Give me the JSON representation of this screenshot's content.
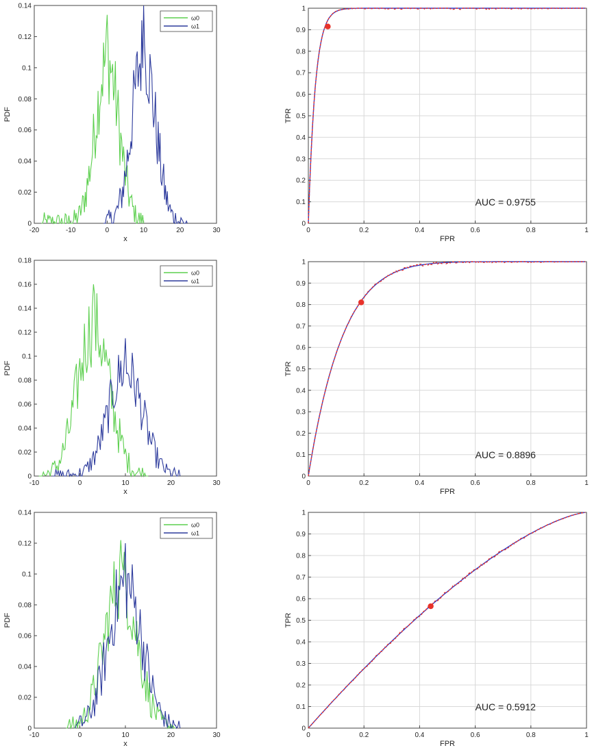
{
  "colors": {
    "omega0": "#5ccf4e",
    "omega1": "#2c3a9c",
    "roc_fit": "#2b3fd0",
    "roc_empirical": "#e8322a",
    "operating_point": "#e8322a",
    "grid": "#d8d8d8",
    "axis": "#444444"
  },
  "chart_data": [
    {
      "type": "line",
      "row": 1,
      "panel": "pdf",
      "xlabel": "x",
      "ylabel": "PDF",
      "xlim": [
        -20,
        30
      ],
      "ylim": [
        0,
        0.14
      ],
      "xticks": [
        "-20",
        "-10",
        "0",
        "10",
        "20",
        "30"
      ],
      "yticks": [
        "0",
        "0.02",
        "0.04",
        "0.06",
        "0.08",
        "0.1",
        "0.12",
        "0.14"
      ],
      "grid": false,
      "legend": "top-right",
      "series": [
        {
          "name": "ω0",
          "mean": 0,
          "sd": 3.2,
          "x_range": [
            -18,
            10
          ],
          "peak": 0.134
        },
        {
          "name": "ω1",
          "mean": 10,
          "sd": 3.2,
          "x_range": [
            -1,
            22
          ],
          "peak": 0.14
        }
      ]
    },
    {
      "type": "line",
      "row": 1,
      "panel": "roc",
      "xlabel": "FPR",
      "ylabel": "TPR",
      "xlim": [
        0,
        1
      ],
      "ylim": [
        0,
        1
      ],
      "xticks": [
        "0",
        "0.2",
        "0.4",
        "0.6",
        "0.8",
        "1"
      ],
      "yticks": [
        "0",
        "0.1",
        "0.2",
        "0.3",
        "0.4",
        "0.5",
        "0.6",
        "0.7",
        "0.8",
        "0.9",
        "1"
      ],
      "grid": true,
      "auc": 0.9755,
      "annotation": "AUC = 0.9755",
      "operating_point": {
        "fpr": 0.07,
        "tpr": 0.915
      }
    },
    {
      "type": "line",
      "row": 2,
      "panel": "pdf",
      "xlabel": "x",
      "ylabel": "PDF",
      "xlim": [
        -10,
        30
      ],
      "ylim": [
        0,
        0.18
      ],
      "xticks": [
        "-10",
        "0",
        "10",
        "20",
        "30"
      ],
      "yticks": [
        "0",
        "0.02",
        "0.04",
        "0.06",
        "0.08",
        "0.1",
        "0.12",
        "0.14",
        "0.16",
        "0.18"
      ],
      "grid": false,
      "legend": "top-right",
      "series": [
        {
          "name": "ω0",
          "mean": 3,
          "sd": 3.5,
          "x_range": [
            -9,
            15
          ],
          "peak": 0.16
        },
        {
          "name": "ω1",
          "mean": 10,
          "sd": 3.7,
          "x_range": [
            -6,
            22
          ],
          "peak": 0.115
        }
      ]
    },
    {
      "type": "line",
      "row": 2,
      "panel": "roc",
      "xlabel": "FPR",
      "ylabel": "TPR",
      "xlim": [
        0,
        1
      ],
      "ylim": [
        0,
        1
      ],
      "xticks": [
        "0",
        "0.2",
        "0.4",
        "0.6",
        "0.8",
        "1"
      ],
      "yticks": [
        "0",
        "0.1",
        "0.2",
        "0.3",
        "0.4",
        "0.5",
        "0.6",
        "0.7",
        "0.8",
        "0.9",
        "1"
      ],
      "grid": true,
      "auc": 0.8896,
      "annotation": "AUC = 0.8896",
      "operating_point": {
        "fpr": 0.19,
        "tpr": 0.81
      }
    },
    {
      "type": "line",
      "row": 3,
      "panel": "pdf",
      "xlabel": "x",
      "ylabel": "PDF",
      "xlim": [
        -10,
        30
      ],
      "ylim": [
        0,
        0.14
      ],
      "xticks": [
        "-10",
        "0",
        "10",
        "20",
        "30"
      ],
      "yticks": [
        "0",
        "0.02",
        "0.04",
        "0.06",
        "0.08",
        "0.1",
        "0.12",
        "0.14"
      ],
      "grid": false,
      "legend": "top-right",
      "series": [
        {
          "name": "ω0",
          "mean": 9,
          "sd": 3.6,
          "x_range": [
            -3,
            21
          ],
          "peak": 0.122
        },
        {
          "name": "ω1",
          "mean": 10,
          "sd": 3.7,
          "x_range": [
            -1,
            22
          ],
          "peak": 0.12
        }
      ]
    },
    {
      "type": "line",
      "row": 3,
      "panel": "roc",
      "xlabel": "FPR",
      "ylabel": "TPR",
      "xlim": [
        0,
        1
      ],
      "ylim": [
        0,
        1
      ],
      "xticks": [
        "0",
        "0.2",
        "0.4",
        "0.6",
        "0.8",
        "1"
      ],
      "yticks": [
        "0",
        "0.1",
        "0.2",
        "0.3",
        "0.4",
        "0.5",
        "0.6",
        "0.7",
        "0.8",
        "0.9",
        "1"
      ],
      "grid": true,
      "auc": 0.5912,
      "annotation": "AUC = 0.5912",
      "operating_point": {
        "fpr": 0.44,
        "tpr": 0.565
      }
    }
  ]
}
